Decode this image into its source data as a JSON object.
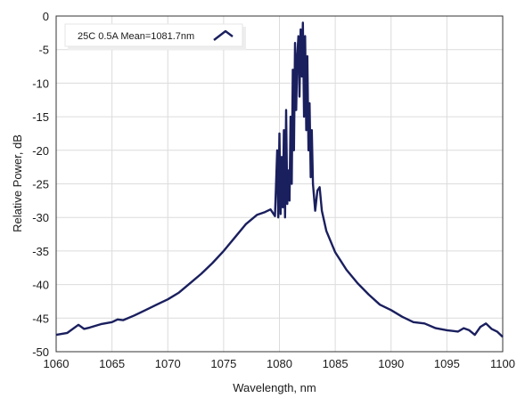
{
  "chart_data": {
    "type": "line",
    "title": "",
    "xlabel": "Wavelength, nm",
    "ylabel": "Relative Power, dB",
    "xlim": [
      1060,
      1100
    ],
    "ylim": [
      -50,
      0
    ],
    "xticks": [
      1060,
      1065,
      1070,
      1075,
      1080,
      1085,
      1090,
      1095,
      1100
    ],
    "yticks": [
      0,
      -5,
      -10,
      -15,
      -20,
      -25,
      -30,
      -35,
      -40,
      -45,
      -50
    ],
    "grid": true,
    "legend_position": "top-left",
    "series": [
      {
        "name": "25C 0.5A Mean=1081.7nm",
        "color": "#1a1f5e",
        "x": [
          1060,
          1061,
          1062,
          1062.5,
          1063,
          1064,
          1065,
          1065.5,
          1066,
          1067,
          1068,
          1069,
          1070,
          1071,
          1072,
          1073,
          1074,
          1075,
          1076,
          1077,
          1078,
          1078.7,
          1079.2,
          1079.6,
          1079.8,
          1079.9,
          1080.0,
          1080.1,
          1080.2,
          1080.3,
          1080.4,
          1080.5,
          1080.6,
          1080.7,
          1080.8,
          1080.9,
          1081.0,
          1081.1,
          1081.2,
          1081.3,
          1081.4,
          1081.5,
          1081.6,
          1081.7,
          1081.8,
          1081.9,
          1082.0,
          1082.1,
          1082.2,
          1082.3,
          1082.4,
          1082.5,
          1082.6,
          1082.7,
          1082.8,
          1082.9,
          1083.0,
          1083.2,
          1083.4,
          1083.6,
          1083.8,
          1084.2,
          1085,
          1086,
          1087,
          1088,
          1089,
          1090,
          1091,
          1092,
          1093,
          1094,
          1095,
          1096,
          1096.5,
          1097,
          1097.5,
          1098,
          1098.5,
          1099,
          1099.5,
          1100
        ],
        "y": [
          -47.5,
          -47.2,
          -46.0,
          -46.6,
          -46.4,
          -45.9,
          -45.6,
          -45.2,
          -45.3,
          -44.6,
          -43.8,
          -43.0,
          -42.2,
          -41.2,
          -39.8,
          -38.4,
          -36.8,
          -35.0,
          -33.0,
          -31.0,
          -29.6,
          -29.2,
          -28.8,
          -29.8,
          -20.0,
          -30.0,
          -17.5,
          -29.5,
          -21.0,
          -28.5,
          -17.0,
          -30.0,
          -14.0,
          -28.0,
          -23.0,
          -27.5,
          -15.0,
          -25.0,
          -8.0,
          -20.0,
          -4.0,
          -14.0,
          -6.0,
          -3.0,
          -12.0,
          -2.0,
          -9.0,
          -1.0,
          -15.0,
          -3.0,
          -17.0,
          -6.0,
          -20.0,
          -13.0,
          -24.0,
          -17.0,
          -25.0,
          -29.0,
          -26.0,
          -25.5,
          -29.0,
          -32.0,
          -35.2,
          -37.8,
          -39.8,
          -41.5,
          -43.0,
          -43.8,
          -44.8,
          -45.6,
          -45.8,
          -46.5,
          -46.8,
          -47.0,
          -46.5,
          -46.8,
          -47.5,
          -46.3,
          -45.8,
          -46.6,
          -47.0,
          -47.8
        ]
      }
    ]
  }
}
